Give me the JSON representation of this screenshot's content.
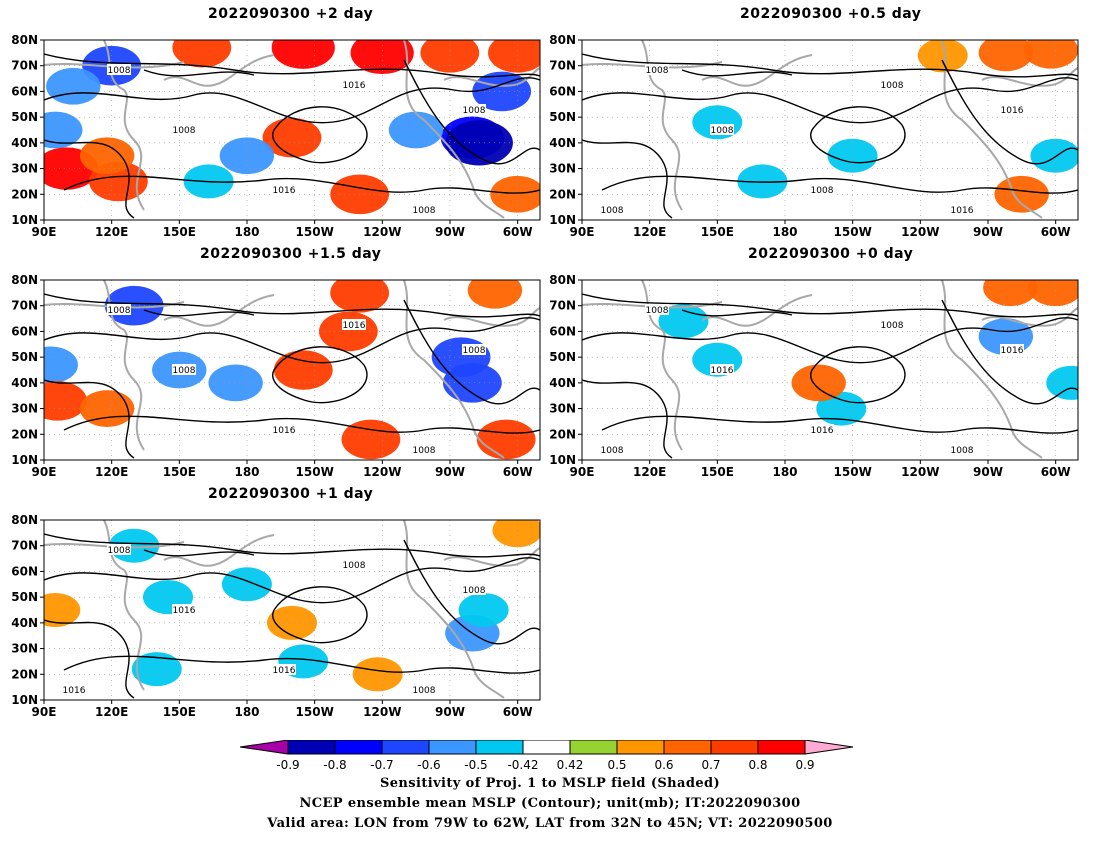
{
  "chart_data": [
    {
      "type": "heatmap",
      "title": "2022090300 +2 day",
      "xlim": [
        90,
        310
      ],
      "ylim": [
        10,
        80
      ],
      "x_tick_labels": [
        "90E",
        "120E",
        "150E",
        "180",
        "150W",
        "120W",
        "90W",
        "60W"
      ],
      "y_tick_labels": [
        "10N",
        "20N",
        "30N",
        "40N",
        "50N",
        "60N",
        "70N",
        "80N"
      ],
      "contour_labels": [
        "1008",
        "1008",
        "1016",
        "1016",
        "1008",
        "1008"
      ],
      "shading": [
        {
          "lon": 120,
          "lat": 70,
          "value": -0.7
        },
        {
          "lon": 103,
          "lat": 62,
          "value": -0.6
        },
        {
          "lon": 95,
          "lat": 45,
          "value": -0.6
        },
        {
          "lon": 100,
          "lat": 30,
          "value": 0.8
        },
        {
          "lon": 123,
          "lat": 25,
          "value": 0.7
        },
        {
          "lon": 118,
          "lat": 35,
          "value": 0.6
        },
        {
          "lon": 160,
          "lat": 77,
          "value": 0.7
        },
        {
          "lon": 205,
          "lat": 77,
          "value": 0.8
        },
        {
          "lon": 240,
          "lat": 75,
          "value": 0.8
        },
        {
          "lon": 270,
          "lat": 75,
          "value": 0.7
        },
        {
          "lon": 300,
          "lat": 75,
          "value": 0.7
        },
        {
          "lon": 200,
          "lat": 42,
          "value": 0.7
        },
        {
          "lon": 180,
          "lat": 35,
          "value": -0.6
        },
        {
          "lon": 163,
          "lat": 25,
          "value": -0.5
        },
        {
          "lon": 230,
          "lat": 20,
          "value": 0.7
        },
        {
          "lon": 280,
          "lat": 42,
          "value": -0.8
        },
        {
          "lon": 283,
          "lat": 40,
          "value": -0.9
        },
        {
          "lon": 255,
          "lat": 45,
          "value": -0.6
        },
        {
          "lon": 293,
          "lat": 60,
          "value": -0.7
        },
        {
          "lon": 300,
          "lat": 20,
          "value": 0.6
        }
      ]
    },
    {
      "type": "heatmap",
      "title": "2022090300 +0.5 day",
      "xlim": [
        90,
        310
      ],
      "ylim": [
        10,
        80
      ],
      "x_tick_labels": [
        "90E",
        "120E",
        "150E",
        "180",
        "150W",
        "120W",
        "90W",
        "60W"
      ],
      "y_tick_labels": [
        "10N",
        "20N",
        "30N",
        "40N",
        "50N",
        "60N",
        "70N",
        "80N"
      ],
      "contour_labels": [
        "1008",
        "1008",
        "1008",
        "1008",
        "1016",
        "1016",
        "1008",
        "1008"
      ],
      "shading": [
        {
          "lon": 298,
          "lat": 76,
          "value": 0.6
        },
        {
          "lon": 278,
          "lat": 75,
          "value": 0.6
        },
        {
          "lon": 250,
          "lat": 74,
          "value": 0.5
        },
        {
          "lon": 150,
          "lat": 48,
          "value": -0.5
        },
        {
          "lon": 170,
          "lat": 25,
          "value": -0.5
        },
        {
          "lon": 210,
          "lat": 35,
          "value": -0.5
        },
        {
          "lon": 300,
          "lat": 35,
          "value": -0.5
        },
        {
          "lon": 285,
          "lat": 20,
          "value": 0.6
        }
      ]
    },
    {
      "type": "heatmap",
      "title": "2022090300 +1.5 day",
      "xlim": [
        90,
        310
      ],
      "ylim": [
        10,
        80
      ],
      "x_tick_labels": [
        "90E",
        "120E",
        "150E",
        "180",
        "150W",
        "120W",
        "90W",
        "60W"
      ],
      "y_tick_labels": [
        "10N",
        "20N",
        "30N",
        "40N",
        "50N",
        "60N",
        "70N",
        "80N"
      ],
      "contour_labels": [
        "1008",
        "1008",
        "1016",
        "1016",
        "1008",
        "1008"
      ],
      "shading": [
        {
          "lon": 130,
          "lat": 70,
          "value": -0.7
        },
        {
          "lon": 93,
          "lat": 47,
          "value": -0.6
        },
        {
          "lon": 96,
          "lat": 33,
          "value": 0.7
        },
        {
          "lon": 118,
          "lat": 30,
          "value": 0.6
        },
        {
          "lon": 175,
          "lat": 40,
          "value": -0.6
        },
        {
          "lon": 150,
          "lat": 45,
          "value": -0.6
        },
        {
          "lon": 205,
          "lat": 45,
          "value": 0.7
        },
        {
          "lon": 225,
          "lat": 60,
          "value": 0.7
        },
        {
          "lon": 230,
          "lat": 75,
          "value": 0.7
        },
        {
          "lon": 280,
          "lat": 40,
          "value": -0.7
        },
        {
          "lon": 275,
          "lat": 50,
          "value": -0.7
        },
        {
          "lon": 235,
          "lat": 18,
          "value": 0.7
        },
        {
          "lon": 295,
          "lat": 18,
          "value": 0.7
        },
        {
          "lon": 290,
          "lat": 76,
          "value": 0.6
        }
      ]
    },
    {
      "type": "heatmap",
      "title": "2022090300 +0 day",
      "xlim": [
        90,
        310
      ],
      "ylim": [
        10,
        80
      ],
      "x_tick_labels": [
        "90E",
        "120E",
        "150E",
        "180",
        "150W",
        "120W",
        "90W",
        "60W"
      ],
      "y_tick_labels": [
        "10N",
        "20N",
        "30N",
        "40N",
        "50N",
        "60N",
        "70N",
        "80N"
      ],
      "contour_labels": [
        "1008",
        "1016",
        "1008",
        "1016",
        "1008",
        "1016",
        "1008"
      ],
      "shading": [
        {
          "lon": 280,
          "lat": 77,
          "value": 0.6
        },
        {
          "lon": 300,
          "lat": 77,
          "value": 0.6
        },
        {
          "lon": 278,
          "lat": 58,
          "value": -0.6
        },
        {
          "lon": 150,
          "lat": 49,
          "value": -0.5
        },
        {
          "lon": 205,
          "lat": 30,
          "value": -0.5
        },
        {
          "lon": 195,
          "lat": 40,
          "value": 0.6
        },
        {
          "lon": 135,
          "lat": 64,
          "value": -0.5
        },
        {
          "lon": 307,
          "lat": 40,
          "value": -0.5
        }
      ]
    },
    {
      "type": "heatmap",
      "title": "2022090300 +1 day",
      "xlim": [
        90,
        310
      ],
      "ylim": [
        10,
        80
      ],
      "x_tick_labels": [
        "90E",
        "120E",
        "150E",
        "180",
        "150W",
        "120W",
        "90W",
        "60W"
      ],
      "y_tick_labels": [
        "10N",
        "20N",
        "30N",
        "40N",
        "50N",
        "60N",
        "70N",
        "80N"
      ],
      "contour_labels": [
        "1008",
        "1016",
        "1008",
        "1016",
        "1008",
        "1008",
        "1016"
      ],
      "shading": [
        {
          "lon": 130,
          "lat": 70,
          "value": -0.5
        },
        {
          "lon": 280,
          "lat": 36,
          "value": -0.6
        },
        {
          "lon": 285,
          "lat": 45,
          "value": -0.5
        },
        {
          "lon": 200,
          "lat": 40,
          "value": 0.5
        },
        {
          "lon": 205,
          "lat": 25,
          "value": -0.5
        },
        {
          "lon": 180,
          "lat": 55,
          "value": -0.5
        },
        {
          "lon": 95,
          "lat": 45,
          "value": 0.5
        },
        {
          "lon": 145,
          "lat": 50,
          "value": -0.5
        },
        {
          "lon": 140,
          "lat": 22,
          "value": -0.5
        },
        {
          "lon": 238,
          "lat": 20,
          "value": 0.5
        },
        {
          "lon": 300,
          "lat": 76,
          "value": 0.5
        }
      ]
    }
  ],
  "colorbar": {
    "tick_labels": [
      "-0.9",
      "-0.8",
      "-0.7",
      "-0.6",
      "-0.5",
      "-0.42",
      "0.42",
      "0.5",
      "0.6",
      "0.7",
      "0.8",
      "0.9"
    ],
    "colors": [
      "#a800a8",
      "#0000b4",
      "#0000ff",
      "#1e46ff",
      "#3c96ff",
      "#00c8f0",
      "#ffffff",
      "#96d232",
      "#ff9600",
      "#ff6400",
      "#ff3c00",
      "#ff0000",
      "#ffaad2"
    ]
  },
  "caption": {
    "line1": "Sensitivity of Proj. 1 to MSLP field (Shaded)",
    "line2": "NCEP ensemble mean MSLP (Contour); unit(mb); IT:2022090300",
    "line3": "Valid area: LON from 79W to 62W, LAT from 32N to 45N; VT: 2022090500"
  }
}
